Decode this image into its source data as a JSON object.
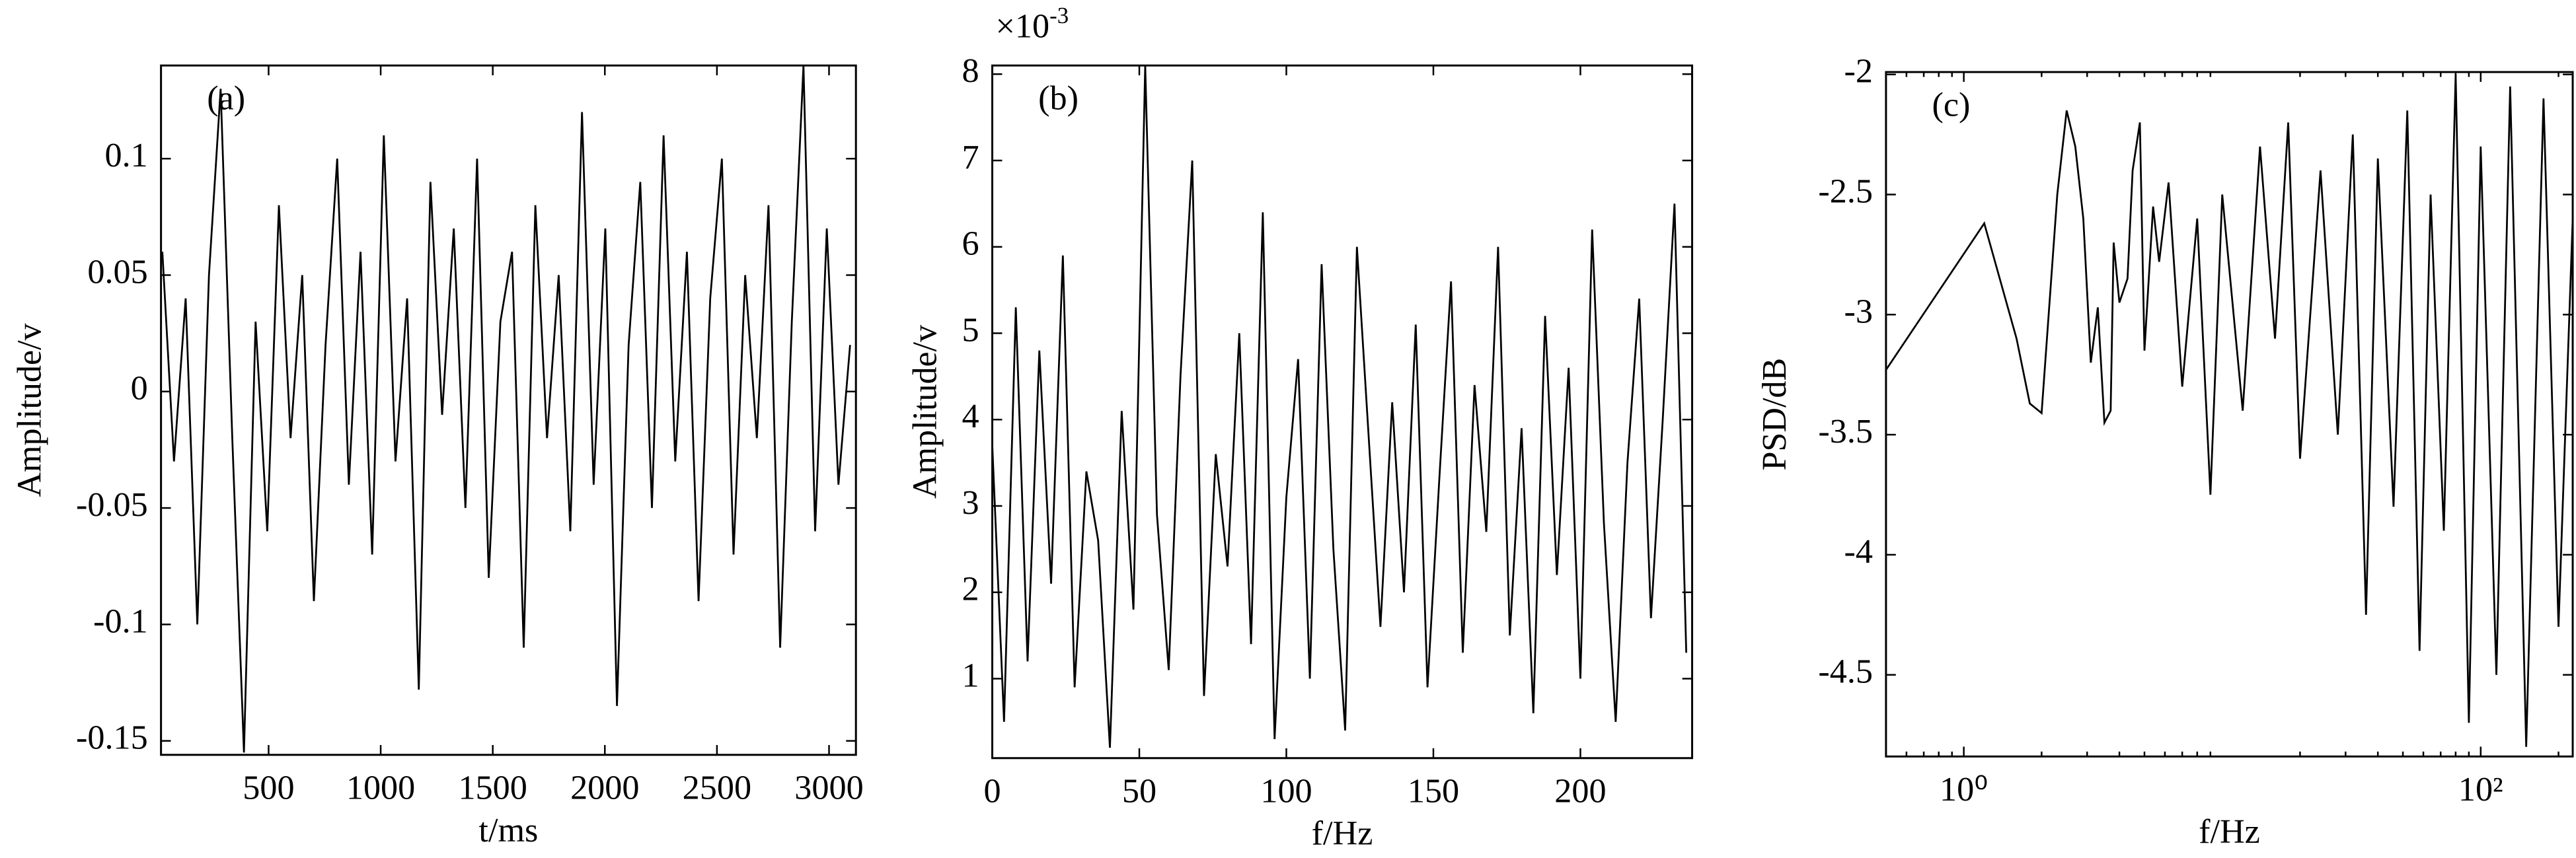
{
  "chart_data": [
    {
      "type": "line",
      "panel_label": "(a)",
      "xlabel": "t/ms",
      "ylabel": "Amplitude/v",
      "color": "#000000",
      "x": [
        26,
        78,
        130,
        182,
        234,
        286,
        338,
        390,
        442,
        494,
        546,
        598,
        650,
        702,
        754,
        806,
        858,
        910,
        962,
        1014,
        1066,
        1118,
        1170,
        1222,
        1274,
        1326,
        1378,
        1430,
        1482,
        1534,
        1586,
        1638,
        1690,
        1742,
        1794,
        1846,
        1898,
        1950,
        2002,
        2054,
        2106,
        2158,
        2210,
        2262,
        2314,
        2366,
        2418,
        2470,
        2522,
        2574,
        2626,
        2678,
        2730,
        2782,
        2834,
        2886,
        2938,
        2990,
        3042,
        3094
      ],
      "values": [
        0.06,
        -0.03,
        0.04,
        -0.1,
        0.05,
        0.13,
        -0.02,
        -0.155,
        0.03,
        -0.06,
        0.08,
        -0.02,
        0.05,
        -0.09,
        0.02,
        0.1,
        -0.04,
        0.06,
        -0.07,
        0.11,
        -0.03,
        0.04,
        -0.128,
        0.09,
        -0.01,
        0.07,
        -0.05,
        0.1,
        -0.08,
        0.03,
        0.06,
        -0.11,
        0.08,
        -0.02,
        0.05,
        -0.06,
        0.12,
        -0.04,
        0.07,
        -0.135,
        0.02,
        0.09,
        -0.05,
        0.11,
        -0.03,
        0.06,
        -0.09,
        0.04,
        0.1,
        -0.07,
        0.05,
        -0.02,
        0.08,
        -0.11,
        0.03,
        0.14,
        -0.06,
        0.07,
        -0.04,
        0.02
      ],
      "xlim": [
        20,
        3120
      ],
      "ylim": [
        -0.156,
        0.14
      ],
      "xticks": [
        500,
        1000,
        1500,
        2000,
        2500,
        3000
      ],
      "yticks": [
        0.1,
        0.05,
        0,
        -0.05,
        -0.1,
        -0.15
      ]
    },
    {
      "type": "line",
      "panel_label": "(b)",
      "xlabel": "f/Hz",
      "ylabel": "Amplitude/v",
      "offset_label": "×10",
      "offset_exponent": "-3",
      "color": "#000000",
      "x": [
        0,
        4,
        8,
        12,
        16,
        20,
        24,
        28,
        32,
        36,
        40,
        44,
        48,
        52,
        56,
        60,
        64,
        68,
        72,
        76,
        80,
        84,
        88,
        92,
        96,
        100,
        104,
        108,
        112,
        116,
        120,
        124,
        128,
        132,
        136,
        140,
        144,
        148,
        152,
        156,
        160,
        164,
        168,
        172,
        176,
        180,
        184,
        188,
        192,
        196,
        200,
        204,
        208,
        212,
        216,
        220,
        224,
        228,
        232,
        236
      ],
      "values": [
        3.7,
        0.5,
        5.3,
        1.2,
        4.8,
        2.1,
        5.9,
        0.9,
        3.4,
        2.6,
        0.2,
        4.1,
        1.8,
        8.1,
        2.9,
        1.1,
        4.5,
        7.0,
        0.8,
        3.6,
        2.3,
        5.0,
        1.4,
        6.4,
        0.3,
        3.1,
        4.7,
        1.0,
        5.8,
        2.5,
        0.4,
        6.0,
        3.8,
        1.6,
        4.2,
        2.0,
        5.1,
        0.9,
        3.3,
        5.6,
        1.3,
        4.4,
        2.7,
        6.0,
        1.5,
        3.9,
        0.6,
        5.2,
        2.2,
        4.6,
        1.0,
        6.2,
        2.8,
        0.5,
        3.5,
        5.4,
        1.7,
        4.0,
        6.5,
        1.3
      ],
      "xlim": [
        0,
        238
      ],
      "ylim": [
        0.08,
        8.1
      ],
      "xticks": [
        0,
        50,
        100,
        150,
        200
      ],
      "yticks": [
        1,
        2,
        3,
        4,
        5,
        6,
        7,
        8
      ]
    },
    {
      "type": "line",
      "panel_label": "(c)",
      "xlabel": "f/Hz",
      "ylabel": "PSD/dB",
      "xscale": "log",
      "color": "#000000",
      "x": [
        0.5,
        1.2,
        1.6,
        1.8,
        2.0,
        2.3,
        2.5,
        2.7,
        2.9,
        3.1,
        3.3,
        3.5,
        3.7,
        3.8,
        4.0,
        4.3,
        4.5,
        4.8,
        5.0,
        5.4,
        5.7,
        6.2,
        7,
        8,
        9,
        10,
        12,
        14,
        16,
        18,
        20,
        24,
        28,
        32,
        36,
        40,
        46,
        52,
        58,
        64,
        72,
        80,
        90,
        100,
        115,
        130,
        150,
        175,
        200,
        227
      ],
      "values": [
        -3.23,
        -2.62,
        -3.1,
        -3.37,
        -3.41,
        -2.5,
        -2.15,
        -2.3,
        -2.6,
        -3.2,
        -2.97,
        -3.45,
        -3.4,
        -2.7,
        -2.95,
        -2.85,
        -2.4,
        -2.2,
        -3.15,
        -2.55,
        -2.78,
        -2.45,
        -3.3,
        -2.6,
        -3.75,
        -2.5,
        -3.4,
        -2.3,
        -3.1,
        -2.2,
        -3.6,
        -2.4,
        -3.5,
        -2.25,
        -4.25,
        -2.35,
        -3.8,
        -2.15,
        -4.4,
        -2.5,
        -3.9,
        -2.0,
        -4.7,
        -2.3,
        -4.5,
        -2.05,
        -4.8,
        -2.1,
        -4.3,
        -2.6
      ],
      "xlim": [
        0.5,
        227
      ],
      "ylim": [
        -4.84,
        -1.99
      ],
      "xticks": [
        {
          "value": 1,
          "label": "10⁰"
        },
        {
          "value": 100,
          "label": "10²"
        }
      ],
      "yticks": [
        -2,
        -2.5,
        -3,
        -3.5,
        -4,
        -4.5
      ]
    }
  ]
}
